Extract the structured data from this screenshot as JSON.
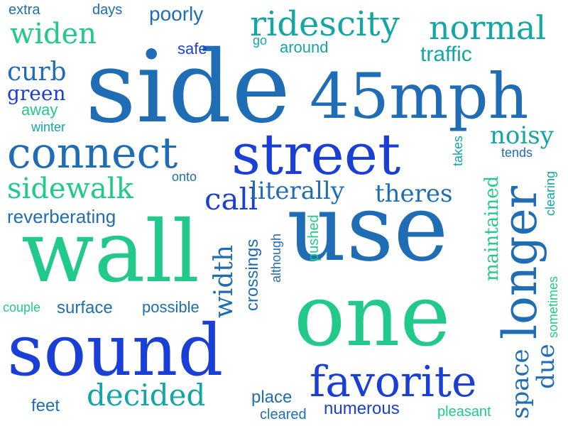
{
  "words": {
    "side": "side",
    "mph45": "45mph",
    "street": "street",
    "use": "use",
    "wall": "wall",
    "one": "one",
    "sound": "sound",
    "connect": "connect",
    "longer": "longer",
    "favorite": "favorite",
    "ridescity": "ridescity",
    "normal": "normal",
    "widen": "widen",
    "curb": "curb",
    "green": "green",
    "sidewalk": "sidewalk",
    "call": "call",
    "literally": "literally",
    "theres": "theres",
    "width": "width",
    "decided": "decided",
    "space": "space",
    "noisy": "noisy",
    "maintained": "maintained",
    "crossings": "crossings",
    "traffic": "traffic",
    "poorly": "poorly",
    "reverberating": "reverberating",
    "surface": "surface",
    "possible": "possible",
    "due": "due",
    "place": "place",
    "numerous": "numerous",
    "cleared": "cleared",
    "pleasant": "pleasant",
    "feet": "feet",
    "extra": "extra",
    "days": "days",
    "safe": "safe",
    "go": "go",
    "around": "around",
    "away": "away",
    "winter": "winter",
    "onto": "onto",
    "pushed": "pushed",
    "although": "although",
    "couple": "couple",
    "takes": "takes",
    "tends": "tends",
    "clearing": "clearing",
    "sometimes": "sometimes"
  },
  "colors": {
    "blue": "#1a3fd6",
    "steel": "#1f6db5",
    "teal": "#14a6a6",
    "green": "#21c98a"
  }
}
